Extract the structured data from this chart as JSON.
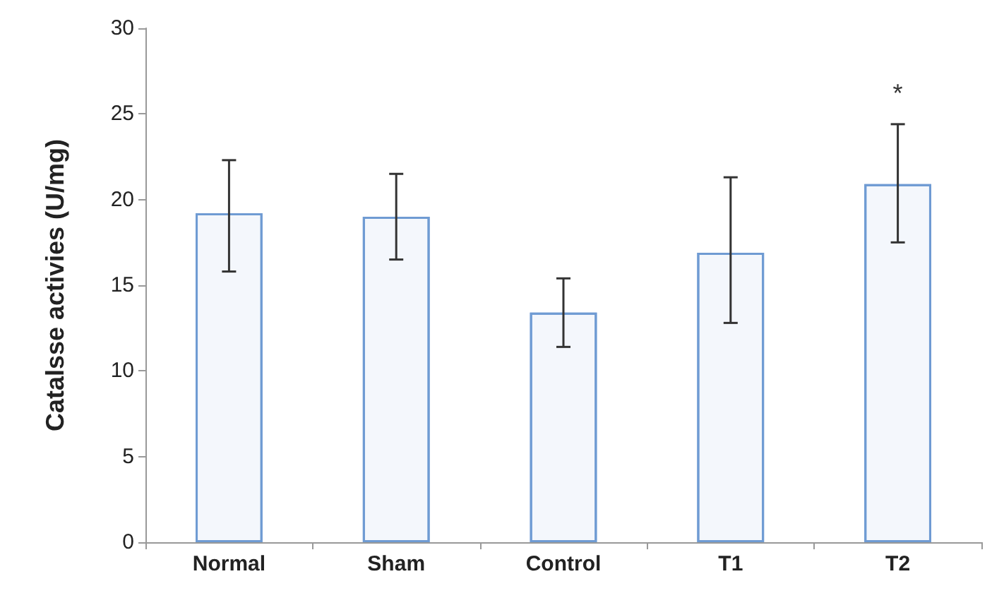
{
  "chart_data": {
    "type": "bar",
    "ylabel": "Catalsse activies (U/mg)",
    "categories": [
      "Normal",
      "Sham",
      "Control",
      "T1",
      "T2"
    ],
    "values": [
      19.2,
      19.0,
      13.4,
      16.9,
      20.9
    ],
    "errors": [
      [
        15.8,
        22.3
      ],
      [
        16.5,
        21.5
      ],
      [
        11.4,
        15.4
      ],
      [
        12.8,
        21.3
      ],
      [
        17.5,
        24.4
      ]
    ],
    "color": "#6f9bd3",
    "ylim": [
      0,
      30
    ],
    "yticks": [
      0,
      5,
      10,
      15,
      20,
      25,
      30
    ],
    "grid": false,
    "annotations": [
      "*"
    ]
  }
}
